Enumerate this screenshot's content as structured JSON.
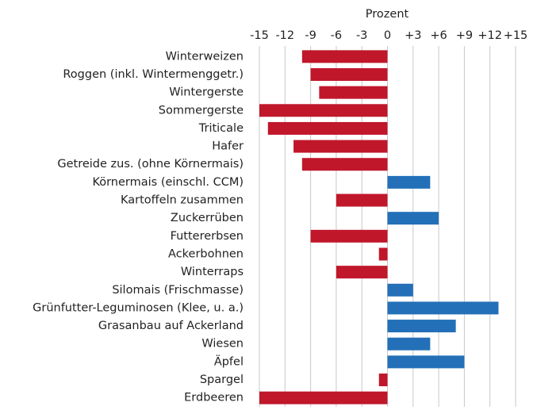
{
  "chart_data": {
    "type": "hbar",
    "title": "Prozent",
    "categories": [
      "Winterweizen",
      "Roggen (inkl. Wintermenggetr.)",
      "Wintergerste",
      "Sommergerste",
      "Triticale",
      "Hafer",
      "Getreide zus. (ohne Körnermais)",
      "Körnermais (einschl. CCM)",
      "Kartoffeln zusammen",
      "Zuckerrüben",
      "Futtererbsen",
      "Ackerbohnen",
      "Winterraps",
      "Silomais (Frischmasse)",
      "Grünfutter-Leguminosen (Klee, u. a.)",
      "Grasanbau auf Ackerland",
      "Wiesen",
      "Äpfel",
      "Spargel",
      "Erdbeeren"
    ],
    "values": [
      -10,
      -9,
      -8,
      -15,
      -14,
      -11,
      -10,
      5,
      -6,
      6,
      -9,
      -1,
      -6,
      3,
      13,
      8,
      5,
      9,
      -1,
      -15
    ],
    "negative_color": "#c0172b",
    "positive_color": "#2370b8",
    "xlim": [
      -15,
      15
    ],
    "xticks": [
      -15,
      -12,
      -9,
      -6,
      -3,
      0,
      {
        "value": 3,
        "label": "+3"
      },
      {
        "value": 6,
        "label": "+6"
      },
      {
        "value": 9,
        "label": "+9"
      },
      {
        "value": 12,
        "label": "+12"
      },
      {
        "value": 15,
        "label": "+15"
      }
    ],
    "grid": true
  }
}
